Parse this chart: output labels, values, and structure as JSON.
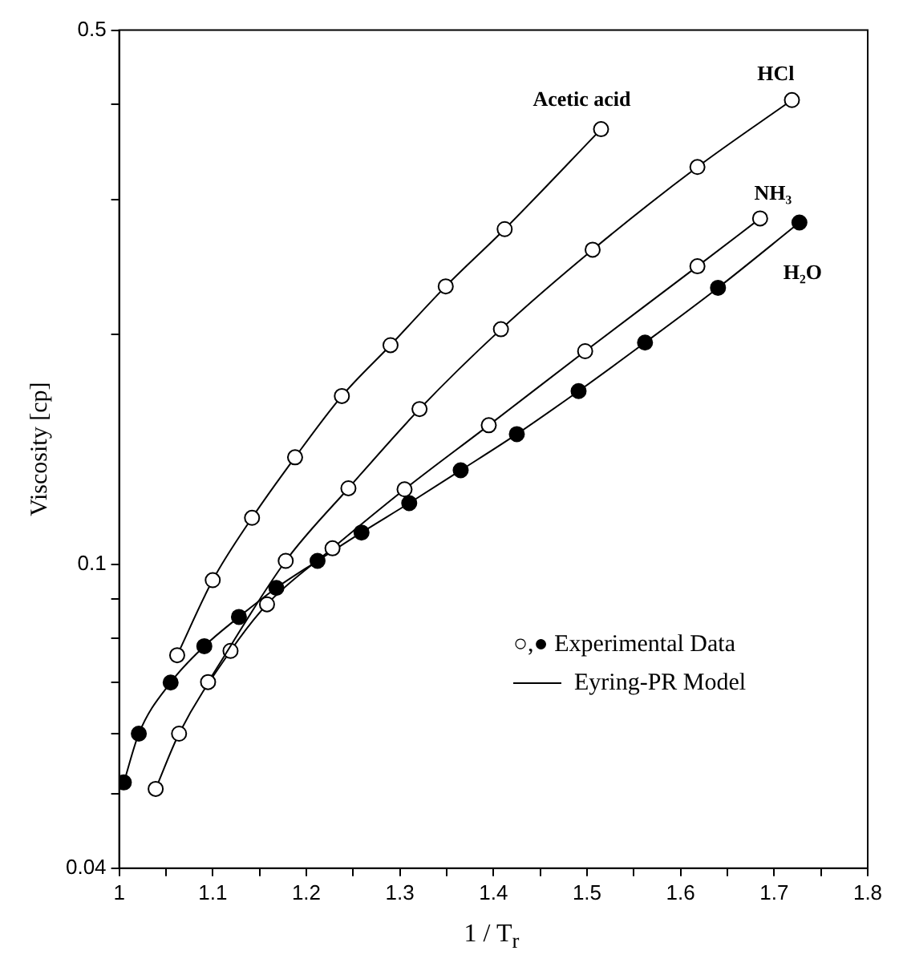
{
  "chart_data": {
    "type": "line",
    "xlabel": "1 / T$_{r}$",
    "ylabel": "Viscosity [cp]",
    "log": "y",
    "marker": "circle",
    "line_style": "solid",
    "xlim": [
      1,
      1.8
    ],
    "xticks": [
      1,
      {
        "value": 1.05,
        "label": null
      },
      1.1,
      {
        "value": 1.15,
        "label": null
      },
      1.2,
      {
        "value": 1.25,
        "label": null
      },
      1.3,
      {
        "value": 1.35,
        "label": null
      },
      1.4,
      {
        "value": 1.45,
        "label": null
      },
      1.5,
      {
        "value": 1.55,
        "label": null
      },
      1.6,
      {
        "value": 1.65,
        "label": null
      },
      1.7,
      {
        "value": 1.75,
        "label": null
      },
      1.8
    ],
    "ylim": [
      0.04,
      0.5
    ],
    "yticks": [
      0.04,
      {
        "value": 0.05,
        "label": null
      },
      {
        "value": 0.06,
        "label": null
      },
      {
        "value": 0.07,
        "label": null
      },
      {
        "value": 0.08,
        "label": null
      },
      {
        "value": 0.09,
        "label": null
      },
      0.1,
      {
        "value": 0.2,
        "label": null
      },
      {
        "value": 0.3,
        "label": null
      },
      {
        "value": 0.4,
        "label": null
      },
      0.5
    ],
    "annotations": [
      "○,● Experimental Data",
      "Eyring-PR Model"
    ],
    "series": [
      {
        "name": "Acetic acid",
        "color": "#000000",
        "x": [
          1.062,
          1.1,
          1.142,
          1.188,
          1.238,
          1.29,
          1.349,
          1.412,
          1.515
        ],
        "values": [
          0.076,
          0.0953,
          0.115,
          0.138,
          0.166,
          0.1935,
          0.231,
          0.2745,
          0.371
        ]
      },
      {
        "name": "HCl",
        "color": "#000000",
        "x": [
          1.095,
          1.178,
          1.245,
          1.321,
          1.408,
          1.506,
          1.618,
          1.719
        ],
        "values": [
          0.0701,
          0.101,
          0.1257,
          0.1596,
          0.203,
          0.258,
          0.331,
          0.405
        ]
      },
      {
        "name": "NH₃",
        "color": "#000000",
        "x": [
          1.039,
          1.064,
          1.119,
          1.158,
          1.228,
          1.305,
          1.395,
          1.498,
          1.618,
          1.685
        ],
        "values": [
          0.0508,
          0.06,
          0.077,
          0.0886,
          0.1049,
          0.1253,
          0.152,
          0.19,
          0.2454,
          0.2835
        ]
      },
      {
        "name": "H₂O",
        "color": "#000000",
        "colors": [
          "#000000",
          "#000000",
          "#000000",
          "#000000",
          "#000000",
          "#000000",
          "#000000",
          "#000000",
          "#000000",
          "#000000",
          "#000000",
          "#000000",
          "#000000",
          "#000000",
          "#000000"
        ],
        "x": [
          1.005,
          1.021,
          1.055,
          1.091,
          1.128,
          1.168,
          1.212,
          1.259,
          1.31,
          1.365,
          1.425,
          1.491,
          1.562,
          1.64,
          1.727
        ],
        "values": [
          0.0518,
          0.06,
          0.07,
          0.0781,
          0.0853,
          0.0931,
          0.101,
          0.11,
          0.1202,
          0.1327,
          0.148,
          0.1685,
          0.195,
          0.23,
          0.28
        ]
      }
    ]
  }
}
